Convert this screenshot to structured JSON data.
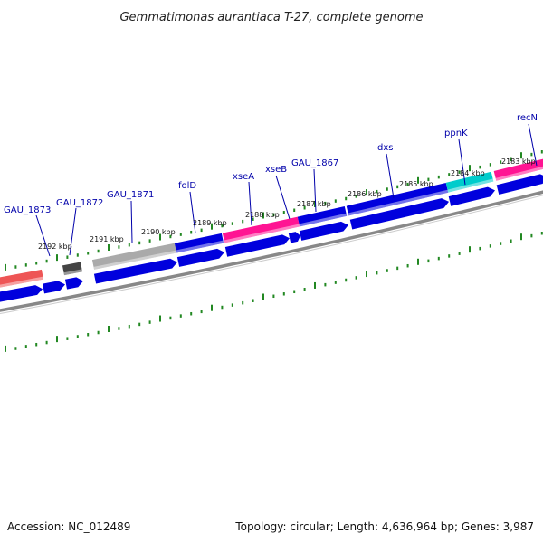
{
  "title": "Gemmatimonas aurantiaca T-27, complete genome",
  "footer": {
    "accession": "Accession: NC_012489",
    "info": "Topology: circular; Length: 4,636,964 bp; Genes: 3,987"
  },
  "colors": {
    "cds": "#0000dd",
    "rrna": "#ff1493",
    "trna": "#00cccc",
    "pseudo": "#aaaaaa",
    "misc": "#444444",
    "red": "#ee5555",
    "backbone": "#888888",
    "tick": "#228822",
    "label": "#0000aa"
  },
  "tick_labels": [
    "2192 kbp",
    "2191 kbp",
    "2190 kbp",
    "2189 kbp",
    "2188 kbp",
    "2187 kbp",
    "2186 kbp",
    "2185 kbp",
    "2184 kbp",
    "2183 kbp"
  ],
  "gene_labels": [
    "GAU_1873",
    "GAU_1872",
    "GAU_1871",
    "folD",
    "xseA",
    "xseB",
    "GAU_1867",
    "dxs",
    "ppnK",
    "recN"
  ]
}
